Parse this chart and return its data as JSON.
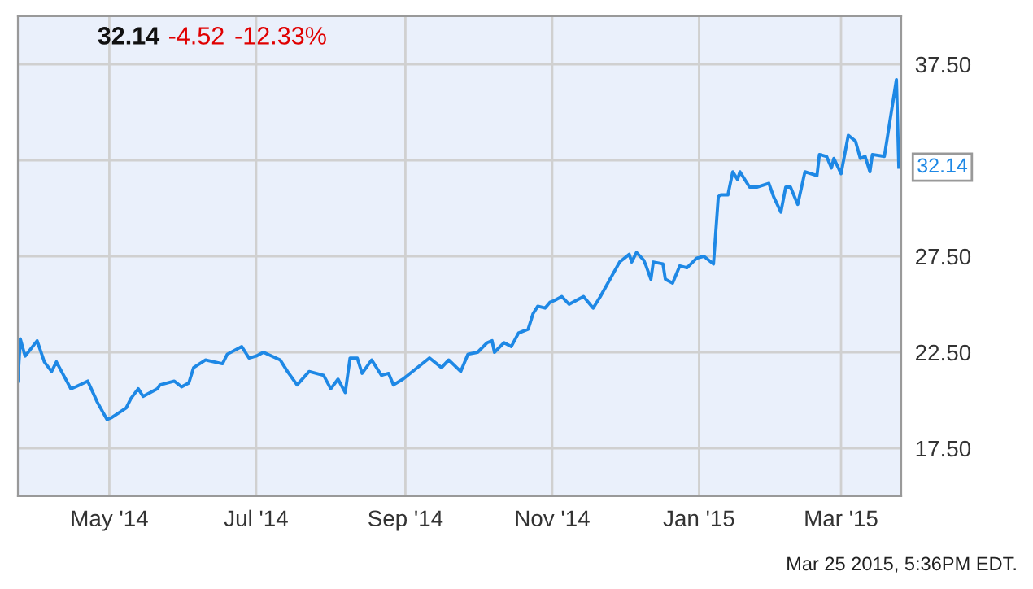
{
  "chart_data": {
    "type": "line",
    "x": [
      "2014-03-24",
      "2014-03-25",
      "2014-03-27",
      "2014-04-01",
      "2014-04-04",
      "2014-04-07",
      "2014-04-09",
      "2014-04-15",
      "2014-04-17",
      "2014-04-22",
      "2014-04-26",
      "2014-04-30",
      "2014-05-02",
      "2014-05-08",
      "2014-05-10",
      "2014-05-13",
      "2014-05-15",
      "2014-05-21",
      "2014-05-22",
      "2014-05-28",
      "2014-05-31",
      "2014-06-03",
      "2014-06-05",
      "2014-06-10",
      "2014-06-17",
      "2014-06-19",
      "2014-06-25",
      "2014-06-28",
      "2014-07-01",
      "2014-07-04",
      "2014-07-11",
      "2014-07-14",
      "2014-07-18",
      "2014-07-23",
      "2014-07-29",
      "2014-08-01",
      "2014-08-04",
      "2014-08-07",
      "2014-08-09",
      "2014-08-12",
      "2014-08-14",
      "2014-08-18",
      "2014-08-22",
      "2014-08-25",
      "2014-08-27",
      "2014-08-31",
      "2014-09-04",
      "2014-09-11",
      "2014-09-16",
      "2014-09-19",
      "2014-09-24",
      "2014-09-27",
      "2014-10-01",
      "2014-10-05",
      "2014-10-07",
      "2014-10-08",
      "2014-10-12",
      "2014-10-15",
      "2014-10-18",
      "2014-10-22",
      "2014-10-24",
      "2014-10-26",
      "2014-10-29",
      "2014-10-31",
      "2014-11-02",
      "2014-11-05",
      "2014-11-08",
      "2014-11-14",
      "2014-11-18",
      "2014-11-21",
      "2014-11-25",
      "2014-11-29",
      "2014-12-03",
      "2014-12-04",
      "2014-12-06",
      "2014-12-09",
      "2014-12-10",
      "2014-12-12",
      "2014-12-13",
      "2014-12-17",
      "2014-12-18",
      "2014-12-21",
      "2014-12-24",
      "2014-12-27",
      "2014-12-31",
      "2015-01-03",
      "2015-01-07",
      "2015-01-09",
      "2015-01-10",
      "2015-01-13",
      "2015-01-15",
      "2015-01-17",
      "2015-01-18",
      "2015-01-22",
      "2015-01-25",
      "2015-01-30",
      "2015-02-01",
      "2015-02-04",
      "2015-02-06",
      "2015-02-08",
      "2015-02-11",
      "2015-02-14",
      "2015-02-19",
      "2015-02-20",
      "2015-02-23",
      "2015-02-25",
      "2015-02-26",
      "2015-03-01",
      "2015-03-04",
      "2015-03-07",
      "2015-03-09",
      "2015-03-11",
      "2015-03-13",
      "2015-03-14",
      "2015-03-19",
      "2015-03-24",
      "2015-03-25"
    ],
    "series": [
      {
        "color": "#1e88e5",
        "values": [
          21.0,
          23.2,
          22.3,
          23.1,
          22.0,
          21.5,
          22.0,
          20.6,
          20.7,
          21.0,
          19.9,
          19.0,
          19.1,
          19.6,
          20.1,
          20.6,
          20.2,
          20.6,
          20.8,
          21.0,
          20.7,
          20.9,
          21.7,
          22.1,
          21.9,
          22.4,
          22.8,
          22.2,
          22.3,
          22.5,
          22.1,
          21.5,
          20.8,
          21.5,
          21.3,
          20.6,
          21.1,
          20.4,
          22.2,
          22.2,
          21.4,
          22.1,
          21.3,
          21.4,
          20.8,
          21.1,
          21.5,
          22.2,
          21.7,
          22.1,
          21.5,
          22.4,
          22.5,
          23.0,
          23.1,
          22.5,
          23.0,
          22.8,
          23.5,
          23.7,
          24.5,
          24.9,
          24.8,
          25.1,
          25.2,
          25.4,
          25.0,
          25.4,
          24.8,
          25.4,
          26.3,
          27.2,
          27.6,
          27.2,
          27.7,
          27.3,
          27.0,
          26.3,
          27.2,
          27.1,
          26.3,
          26.1,
          27.0,
          26.9,
          27.4,
          27.5,
          27.1,
          30.6,
          30.7,
          30.7,
          31.9,
          31.5,
          31.9,
          31.1,
          31.1,
          31.3,
          30.6,
          29.8,
          31.1,
          31.1,
          30.2,
          31.9,
          31.7,
          32.8,
          32.7,
          32.1,
          32.6,
          31.8,
          33.8,
          33.5,
          32.6,
          32.7,
          31.9,
          32.8,
          32.7,
          36.7,
          32.14
        ]
      }
    ],
    "xlim": [
      "2014-03-24",
      "2015-03-26"
    ],
    "xticks": [
      {
        "value": "2014-05-01",
        "label": "May '14"
      },
      {
        "value": "2014-07-01",
        "label": "Jul '14"
      },
      {
        "value": "2014-09-01",
        "label": "Sep '14"
      },
      {
        "value": "2014-11-01",
        "label": "Nov '14"
      },
      {
        "value": "2015-01-01",
        "label": "Jan '15"
      },
      {
        "value": "2015-03-01",
        "label": "Mar '15"
      }
    ],
    "ylim": [
      15,
      40
    ],
    "yticks": [
      {
        "value": 17.5,
        "label": "17.50"
      },
      {
        "value": 22.5,
        "label": "22.50"
      },
      {
        "value": 27.5,
        "label": "27.50"
      },
      {
        "value": 32.5,
        "label": null
      },
      {
        "value": 37.5,
        "label": "37.50"
      }
    ],
    "grid": true,
    "annotations": [
      "32.14",
      "-4.52",
      "-12.33%",
      {
        "text": "32.14",
        "x": "2015-03-25",
        "y": 32.14
      },
      "Mar 25 2015, 5:36PM EDT."
    ]
  }
}
